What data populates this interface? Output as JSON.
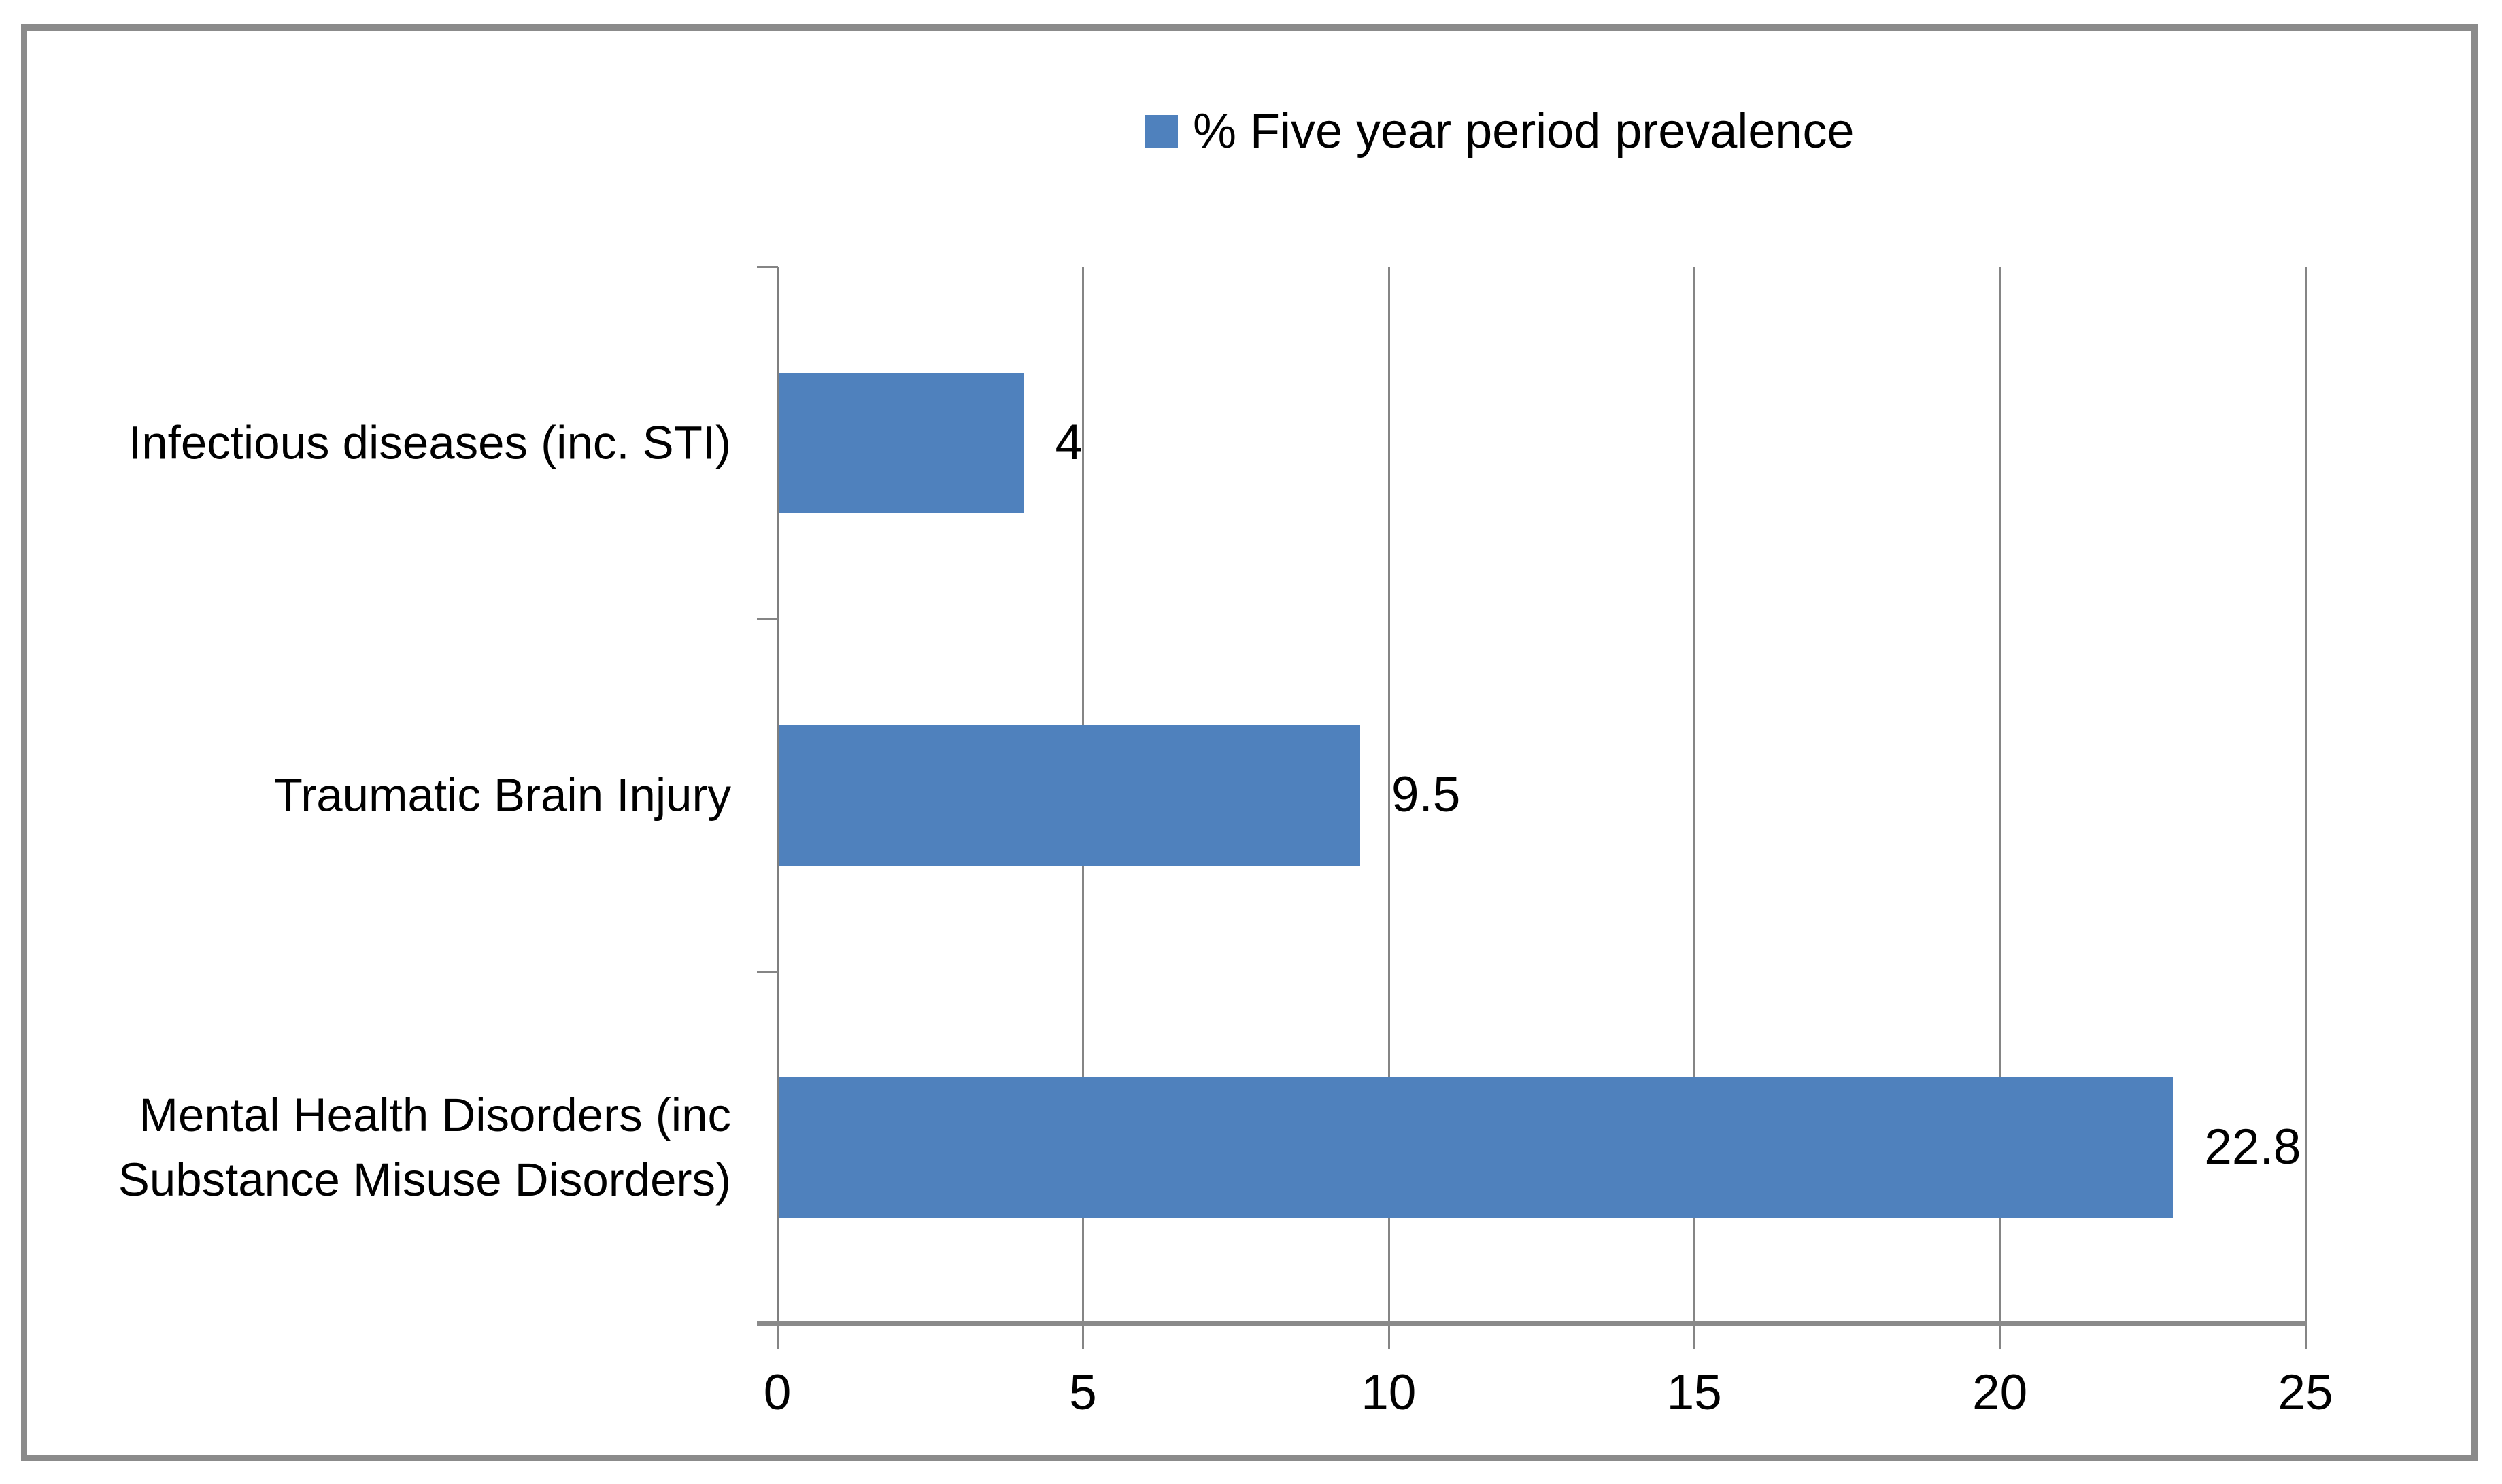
{
  "chart_data": {
    "type": "bar",
    "orientation": "horizontal",
    "title": "",
    "categories": [
      "Infectious diseases (inc. STI)",
      "Traumatic Brain Injury",
      "Mental Health Disorders (inc Substance Misuse Disorders)"
    ],
    "category_label_lines": [
      [
        "Infectious diseases (inc. STI)"
      ],
      [
        "Traumatic Brain Injury"
      ],
      [
        "Mental Health Disorders (inc",
        "Substance Misuse Disorders)"
      ]
    ],
    "series": [
      {
        "name": "% Five year period prevalence",
        "values": [
          4,
          9.5,
          22.8
        ]
      }
    ],
    "data_labels": [
      "4",
      "9.5",
      "22.8"
    ],
    "legend": {
      "label": "% Five year period prevalence",
      "position": "top-center",
      "marker_color": "#4F81BD"
    },
    "xlabel": "",
    "ylabel": "",
    "xlim": [
      0,
      25
    ],
    "x_ticks": [
      "0",
      "5",
      "10",
      "15",
      "20",
      "25"
    ],
    "grid": "vertical-major",
    "bar_color": "#4F81BD"
  },
  "colors": {
    "bar": "#4F81BD",
    "gridline": "#858585",
    "axis": "#8A8A8A",
    "frame_border": "#8B8B8B",
    "text": "#000000",
    "background": "#FFFFFF"
  }
}
